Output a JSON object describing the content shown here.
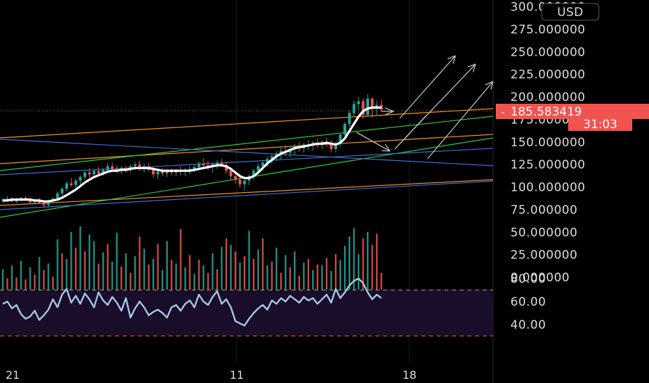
{
  "currency_label": "USD",
  "price_axis": {
    "ticks": [
      {
        "value": 300,
        "label": "300.000000"
      },
      {
        "value": 275,
        "label": "275.000000"
      },
      {
        "value": 250,
        "label": "250.000000"
      },
      {
        "value": 225,
        "label": "225.000000"
      },
      {
        "value": 200,
        "label": "200.000000"
      },
      {
        "value": 175,
        "label": "175.000000"
      },
      {
        "value": 150,
        "label": "150.000000"
      },
      {
        "value": 125,
        "label": "125.000000"
      },
      {
        "value": 100,
        "label": "100.000000"
      },
      {
        "value": 75,
        "label": "75.000000"
      },
      {
        "value": 50,
        "label": "50.000000"
      },
      {
        "value": 25,
        "label": "25.000000"
      },
      {
        "value": 0,
        "label": "0.000000"
      }
    ]
  },
  "last_price": {
    "value": 185.583419,
    "label": "185.583419",
    "countdown": "31:03",
    "color": "#f05350"
  },
  "oscillator_axis": {
    "ticks": [
      {
        "value": 80,
        "label": "80.00"
      },
      {
        "value": 60,
        "label": "60.00"
      },
      {
        "value": 40,
        "label": "40.00"
      }
    ],
    "upper_band": 70,
    "lower_band": 30
  },
  "time_axis": {
    "labels": [
      "21",
      "11",
      "18"
    ]
  },
  "colors": {
    "up": "#26a69a",
    "down": "#ef5350",
    "ma": "#ffffff",
    "trend_orange": "#f7931a",
    "trend_green": "#2ecc40",
    "trend_blue": "#3d6fd6",
    "arrows": "#bdbdbd",
    "oscillator": "#a7c7e7",
    "oscillator_bg": "#1a0d2a"
  },
  "chart_data": {
    "type": "candlestick",
    "price_range": [
      0,
      300
    ],
    "candles": [
      [
        85,
        88,
        82,
        86
      ],
      [
        86,
        90,
        84,
        87
      ],
      [
        87,
        89,
        83,
        84
      ],
      [
        84,
        88,
        82,
        86
      ],
      [
        86,
        89,
        84,
        88
      ],
      [
        88,
        90,
        85,
        86
      ],
      [
        86,
        88,
        82,
        83
      ],
      [
        83,
        87,
        80,
        85
      ],
      [
        85,
        88,
        81,
        82
      ],
      [
        82,
        84,
        77,
        80
      ],
      [
        80,
        86,
        78,
        84
      ],
      [
        84,
        89,
        82,
        87
      ],
      [
        87,
        95,
        85,
        93
      ],
      [
        93,
        100,
        90,
        98
      ],
      [
        98,
        106,
        95,
        104
      ],
      [
        104,
        110,
        100,
        102
      ],
      [
        102,
        109,
        98,
        107
      ],
      [
        107,
        113,
        103,
        111
      ],
      [
        111,
        118,
        108,
        116
      ],
      [
        116,
        121,
        110,
        114
      ],
      [
        114,
        120,
        110,
        118
      ],
      [
        118,
        122,
        113,
        115
      ],
      [
        115,
        121,
        112,
        119
      ],
      [
        119,
        126,
        116,
        123
      ],
      [
        123,
        127,
        117,
        120
      ],
      [
        120,
        124,
        115,
        118
      ],
      [
        118,
        123,
        114,
        121
      ],
      [
        121,
        124,
        116,
        119
      ],
      [
        119,
        125,
        116,
        123
      ],
      [
        123,
        128,
        119,
        125
      ],
      [
        125,
        129,
        118,
        120
      ],
      [
        120,
        126,
        116,
        123
      ],
      [
        123,
        127,
        117,
        119
      ],
      [
        119,
        122,
        110,
        114
      ],
      [
        114,
        120,
        109,
        117
      ],
      [
        117,
        121,
        112,
        115
      ],
      [
        115,
        120,
        111,
        118
      ],
      [
        118,
        121,
        113,
        116
      ],
      [
        116,
        120,
        112,
        118
      ],
      [
        118,
        122,
        113,
        117
      ],
      [
        117,
        121,
        112,
        119
      ],
      [
        119,
        123,
        114,
        120
      ],
      [
        120,
        125,
        116,
        122
      ],
      [
        122,
        128,
        118,
        126
      ],
      [
        126,
        132,
        121,
        124
      ],
      [
        124,
        129,
        119,
        122
      ],
      [
        122,
        127,
        116,
        125
      ],
      [
        125,
        130,
        120,
        127
      ],
      [
        127,
        131,
        122,
        124
      ],
      [
        124,
        128,
        115,
        118
      ],
      [
        118,
        122,
        108,
        112
      ],
      [
        112,
        117,
        103,
        108
      ],
      [
        108,
        114,
        99,
        103
      ],
      [
        103,
        110,
        96,
        107
      ],
      [
        107,
        114,
        102,
        112
      ],
      [
        112,
        120,
        108,
        118
      ],
      [
        118,
        126,
        114,
        123
      ],
      [
        123,
        130,
        118,
        127
      ],
      [
        127,
        134,
        122,
        131
      ],
      [
        131,
        137,
        126,
        134
      ],
      [
        134,
        140,
        129,
        137
      ],
      [
        137,
        144,
        131,
        140
      ],
      [
        140,
        146,
        134,
        138
      ],
      [
        138,
        145,
        133,
        142
      ],
      [
        142,
        148,
        136,
        145
      ],
      [
        145,
        150,
        139,
        143
      ],
      [
        143,
        149,
        138,
        147
      ],
      [
        147,
        152,
        141,
        146
      ],
      [
        146,
        151,
        140,
        149
      ],
      [
        149,
        154,
        143,
        147
      ],
      [
        147,
        152,
        142,
        150
      ],
      [
        150,
        155,
        144,
        148
      ],
      [
        148,
        152,
        138,
        142
      ],
      [
        142,
        150,
        138,
        148
      ],
      [
        148,
        160,
        145,
        158
      ],
      [
        158,
        172,
        155,
        170
      ],
      [
        170,
        185,
        166,
        182
      ],
      [
        182,
        196,
        178,
        192
      ],
      [
        192,
        200,
        185,
        195
      ],
      [
        195,
        198,
        176,
        180
      ],
      [
        180,
        203,
        178,
        198
      ],
      [
        198,
        199,
        177,
        188
      ],
      [
        188,
        196,
        180,
        191
      ],
      [
        191,
        197,
        183,
        186
      ]
    ],
    "volumes": [
      [
        22,
        1
      ],
      [
        12,
        0
      ],
      [
        26,
        1
      ],
      [
        13,
        0
      ],
      [
        31,
        1
      ],
      [
        11,
        0
      ],
      [
        24,
        1
      ],
      [
        16,
        0
      ],
      [
        35,
        1
      ],
      [
        21,
        0
      ],
      [
        28,
        1
      ],
      [
        14,
        0
      ],
      [
        54,
        1
      ],
      [
        39,
        0
      ],
      [
        33,
        1
      ],
      [
        62,
        1
      ],
      [
        45,
        0
      ],
      [
        68,
        1
      ],
      [
        41,
        0
      ],
      [
        59,
        1
      ],
      [
        52,
        1
      ],
      [
        28,
        0
      ],
      [
        40,
        1
      ],
      [
        49,
        0
      ],
      [
        30,
        1
      ],
      [
        61,
        1
      ],
      [
        25,
        0
      ],
      [
        39,
        1
      ],
      [
        18,
        0
      ],
      [
        36,
        1
      ],
      [
        57,
        0
      ],
      [
        44,
        1
      ],
      [
        27,
        0
      ],
      [
        33,
        1
      ],
      [
        49,
        0
      ],
      [
        21,
        1
      ],
      [
        52,
        1
      ],
      [
        32,
        0
      ],
      [
        28,
        1
      ],
      [
        65,
        0
      ],
      [
        24,
        1
      ],
      [
        37,
        0
      ],
      [
        17,
        1
      ],
      [
        32,
        0
      ],
      [
        26,
        1
      ],
      [
        18,
        0
      ],
      [
        39,
        1
      ],
      [
        22,
        0
      ],
      [
        46,
        1
      ],
      [
        55,
        0
      ],
      [
        48,
        1
      ],
      [
        41,
        0
      ],
      [
        29,
        1
      ],
      [
        36,
        0
      ],
      [
        63,
        1
      ],
      [
        33,
        0
      ],
      [
        43,
        1
      ],
      [
        55,
        0
      ],
      [
        26,
        1
      ],
      [
        30,
        0
      ],
      [
        45,
        1
      ],
      [
        18,
        0
      ],
      [
        37,
        1
      ],
      [
        24,
        0
      ],
      [
        41,
        1
      ],
      [
        15,
        0
      ],
      [
        29,
        1
      ],
      [
        33,
        0
      ],
      [
        21,
        1
      ],
      [
        27,
        0
      ],
      [
        26,
        1
      ],
      [
        34,
        0
      ],
      [
        20,
        1
      ],
      [
        38,
        0
      ],
      [
        32,
        1
      ],
      [
        47,
        1
      ],
      [
        57,
        1
      ],
      [
        66,
        1
      ],
      [
        38,
        1
      ],
      [
        55,
        0
      ],
      [
        62,
        1
      ],
      [
        48,
        0
      ],
      [
        60,
        0
      ],
      [
        18,
        0
      ]
    ],
    "oscillator": [
      58,
      60,
      54,
      57,
      49,
      45,
      47,
      52,
      44,
      48,
      53,
      62,
      55,
      66,
      71,
      59,
      65,
      58,
      67,
      62,
      55,
      68,
      61,
      57,
      64,
      59,
      52,
      63,
      46,
      54,
      60,
      55,
      48,
      51,
      53,
      50,
      46,
      55,
      57,
      52,
      58,
      61,
      55,
      66,
      60,
      57,
      64,
      69,
      58,
      62,
      55,
      43,
      41,
      39,
      45,
      50,
      54,
      57,
      53,
      61,
      58,
      63,
      60,
      65,
      62,
      59,
      64,
      61,
      63,
      58,
      62,
      66,
      59,
      71,
      63,
      68,
      74,
      78,
      80,
      76,
      68,
      62,
      66,
      63
    ],
    "moving_average": [
      85,
      85,
      86,
      86,
      86,
      86,
      86,
      85,
      85,
      84,
      84,
      85,
      86,
      88,
      91,
      94,
      97,
      101,
      105,
      108,
      111,
      113,
      115,
      117,
      118,
      118,
      119,
      119,
      120,
      121,
      121,
      121,
      121,
      120,
      119,
      118,
      118,
      118,
      118,
      118,
      118,
      118,
      119,
      120,
      121,
      122,
      123,
      124,
      124,
      123,
      120,
      116,
      112,
      110,
      110,
      112,
      116,
      121,
      126,
      130,
      134,
      137,
      139,
      141,
      143,
      144,
      145,
      146,
      147,
      148,
      148,
      149,
      148,
      147,
      149,
      154,
      162,
      170,
      178,
      184,
      187,
      188,
      188,
      188
    ]
  }
}
